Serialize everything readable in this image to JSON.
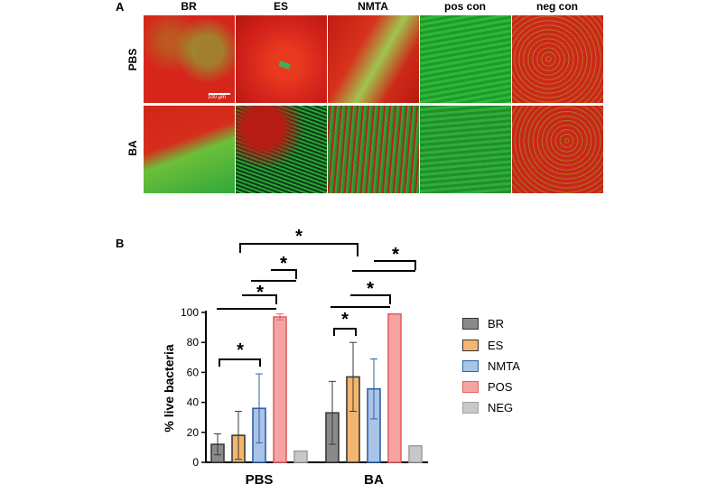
{
  "panel_a": {
    "letter": "A",
    "columns": [
      "BR",
      "ES",
      "NMTA",
      "pos con",
      "neg con"
    ],
    "rows": [
      "PBS",
      "BA"
    ],
    "scale_label": "100 µm",
    "tiles": [
      [
        "red-green-speckle",
        "red",
        "red-green-speckle",
        "green",
        "red-speckle"
      ],
      [
        "red-green-split",
        "green-dark-red",
        "green-red-fibers",
        "green-fibers",
        "red-speckle"
      ]
    ]
  },
  "panel_b": {
    "letter": "B"
  },
  "chart_data": {
    "type": "bar",
    "ylabel": "% live bacteria",
    "xlabel": "",
    "ylim": [
      0,
      100
    ],
    "yticks": [
      0,
      20,
      40,
      60,
      80,
      100
    ],
    "categories": [
      "PBS",
      "BA"
    ],
    "series": [
      {
        "name": "BR",
        "values": [
          12,
          33
        ],
        "err": [
          7,
          21
        ],
        "fill": "#8a8a8a",
        "stroke": "#3a3a3a"
      },
      {
        "name": "ES",
        "values": [
          18,
          57
        ],
        "err": [
          16,
          23
        ],
        "fill": "#f3b66e",
        "stroke": "#3a3a3a"
      },
      {
        "name": "NMTA",
        "values": [
          36,
          49
        ],
        "err": [
          23,
          20
        ],
        "fill": "#a9c4e6",
        "stroke": "#2e62a8"
      },
      {
        "name": "POS",
        "values": [
          97,
          99
        ],
        "err": [
          2,
          0.5
        ],
        "fill": "#f5a3a3",
        "stroke": "#e06262"
      },
      {
        "name": "NEG",
        "values": [
          7.5,
          11
        ],
        "err": [
          0.6,
          0.6
        ],
        "fill": "#c8c8c8",
        "stroke": "#a0a0a0"
      }
    ],
    "significance_marker": "*"
  }
}
